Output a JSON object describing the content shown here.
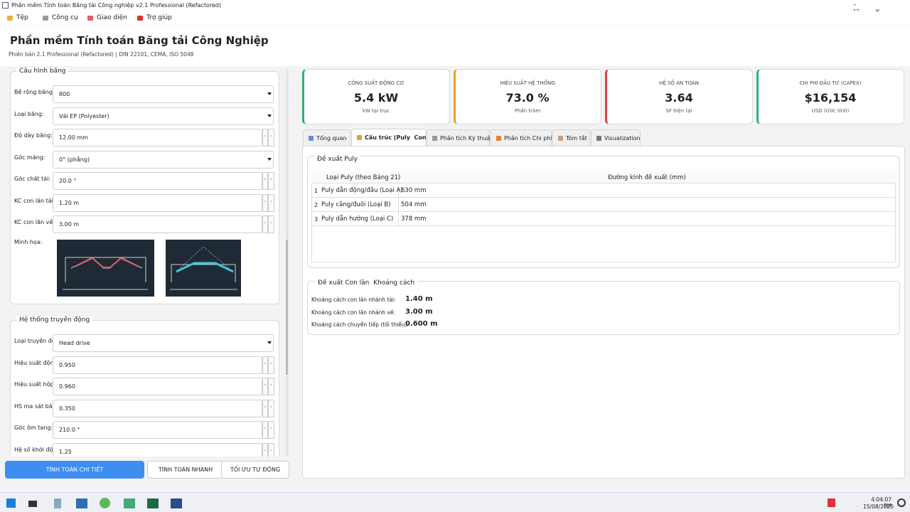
{
  "window": {
    "title": "Phần mềm Tính toán Băng tải Công nghiệp v2.1 Professional (Refactored)"
  },
  "menu": [
    "Tệp",
    "Công cụ",
    "Giao diện",
    "Trợ giúp"
  ],
  "header": {
    "title": "Phần mềm Tính toán Băng tải Công Nghiệp",
    "subtitle": "Phiên bản 2.1 Professional (Refactored) | DIN 22101, CEMA, ISO 5048"
  },
  "groups": [
    {
      "title": "Cấu hình băng",
      "fields": [
        {
          "label": "Bề rộng băng:",
          "value": "800",
          "control": "combo"
        },
        {
          "label": "Loại băng:",
          "value": "Vải EP (Polyester)",
          "control": "combo"
        },
        {
          "label": "Độ dày băng:",
          "value": "12.00 mm",
          "control": "spin"
        },
        {
          "label": "Góc máng:",
          "value": "0° (phẳng)",
          "control": "combo"
        },
        {
          "label": "Góc chất tải:",
          "value": "20.0 °",
          "control": "spin"
        },
        {
          "label": "KC con lăn tải:",
          "value": "1.20 m",
          "control": "spin"
        },
        {
          "label": "KC con lăn về:",
          "value": "3.00 m",
          "control": "spin"
        }
      ],
      "illustration_label": "Minh họa:"
    },
    {
      "title": "Hệ thống truyền động",
      "fields": [
        {
          "label": "Loại truyền động:",
          "value": "Head drive",
          "control": "combo"
        },
        {
          "label": "Hiệu suất động cơ:",
          "value": "0.950",
          "control": "spin"
        },
        {
          "label": "Hiệu suất hộp số:",
          "value": "0.960",
          "control": "spin"
        },
        {
          "label": "HS ma sát băng-tang:",
          "value": "0.350",
          "control": "spin"
        },
        {
          "label": "Góc ôm tang:",
          "value": "210.0 °",
          "control": "spin"
        },
        {
          "label": "Hệ số khởi động:",
          "value": "1.25",
          "control": "spin"
        }
      ]
    }
  ],
  "buttons": [
    "TÍNH TOÁN CHI TIẾT",
    "TÍNH TOÁN NHANH",
    "TỐI ƯU TỰ ĐỘNG"
  ],
  "cards": [
    {
      "title": "CÔNG SUẤT ĐỘNG CƠ",
      "value": "5.4 kW",
      "caption": "kW tại trục",
      "color": "#1fb774"
    },
    {
      "title": "HIỆU SUẤT HỆ THỐNG",
      "value": "73.0 %",
      "caption": "Phần trăm",
      "color": "#f0a020"
    },
    {
      "title": "HỆ SỐ AN TOÀN",
      "value": "3.64",
      "caption": "SF hiện tại",
      "color": "#e04040"
    },
    {
      "title": "CHI PHÍ ĐẦU TƯ (CAPEX)",
      "value": "$16,154",
      "caption": "USD (Ước tính)",
      "color": "#1fb774"
    }
  ],
  "tabs": [
    "Tổng quan",
    "Cấu trúc (Puly  Con lăn)",
    "Phân tích Kỹ thuật",
    "Phân tích Chi phí",
    "Tóm tắt",
    "Visualization"
  ],
  "pulley": {
    "title": "Đề xuất Puly",
    "columns": [
      "Loại Puly (theo Bảng 21)",
      "Đường kính đề xuất (mm)"
    ],
    "rows": [
      [
        "1",
        "Puly dẫn động/đầu (Loại A)",
        "630 mm"
      ],
      [
        "2",
        "Puly căng/đuôi (Loại B)",
        "504 mm"
      ],
      [
        "3",
        "Puly dẫn hướng (Loại C)",
        "378 mm"
      ]
    ]
  },
  "idler": {
    "title": "Đề xuất Con lăn  Khoảng cách",
    "rows": [
      [
        "Khoảng cách con lăn nhánh tải:",
        "1.40 m"
      ],
      [
        "Khoảng cách con lăn nhánh về:",
        "3.00 m"
      ],
      [
        "Khoảng cách chuyển tiếp (tối thiểu):",
        "0.600 m"
      ]
    ]
  },
  "taskbar": {
    "time": "4:04:07 PM",
    "date": "15/08/2025"
  }
}
